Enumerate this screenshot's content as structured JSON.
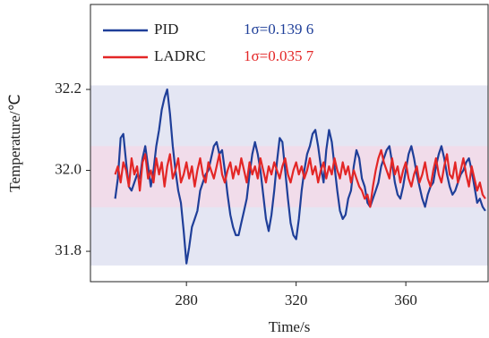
{
  "chart_data": {
    "type": "line",
    "x_label": "Time/s",
    "y_label": "Temperature/℃",
    "xlim": [
      245,
      390
    ],
    "ylim": [
      31.725,
      32.41
    ],
    "xticks": [
      280,
      320,
      360
    ],
    "yticks": [
      31.8,
      {
        "value": 32,
        "label": "32.0"
      },
      32.2
    ],
    "bands": [
      {
        "ylim": [
          31.765,
          32.21
        ],
        "color": "#e4e6f3"
      },
      {
        "ylim": [
          31.909,
          32.06
        ],
        "color": "#f1dcea"
      }
    ],
    "legend": "upper left",
    "x": [
      254,
      255,
      256,
      257,
      258,
      259,
      260,
      261,
      262,
      263,
      264,
      265,
      266,
      267,
      268,
      269,
      270,
      271,
      272,
      273,
      274,
      275,
      276,
      277,
      278,
      279,
      280,
      281,
      282,
      283,
      284,
      285,
      286,
      287,
      288,
      289,
      290,
      291,
      292,
      293,
      294,
      295,
      296,
      297,
      298,
      299,
      300,
      301,
      302,
      303,
      304,
      305,
      306,
      307,
      308,
      309,
      310,
      311,
      312,
      313,
      314,
      315,
      316,
      317,
      318,
      319,
      320,
      321,
      322,
      323,
      324,
      325,
      326,
      327,
      328,
      329,
      330,
      331,
      332,
      333,
      334,
      335,
      336,
      337,
      338,
      339,
      340,
      341,
      342,
      343,
      344,
      345,
      346,
      347,
      348,
      349,
      350,
      351,
      352,
      353,
      354,
      355,
      356,
      357,
      358,
      359,
      360,
      361,
      362,
      363,
      364,
      365,
      366,
      367,
      368,
      369,
      370,
      371,
      372,
      373,
      374,
      375,
      376,
      377,
      378,
      379,
      380,
      381,
      382,
      383,
      384,
      385,
      386,
      387,
      388,
      389
    ],
    "series": [
      {
        "name": "PID",
        "note_label": "1σ=0.139 6",
        "color": "#1f3f99",
        "values": [
          31.93,
          31.98,
          32.08,
          32.09,
          32.02,
          31.96,
          31.95,
          31.97,
          31.99,
          31.98,
          32.03,
          32.06,
          32.01,
          31.96,
          32.0,
          32.06,
          32.1,
          32.15,
          32.18,
          32.2,
          32.14,
          32.06,
          32.0,
          31.95,
          31.92,
          31.85,
          31.77,
          31.81,
          31.86,
          31.88,
          31.9,
          31.95,
          31.97,
          31.99,
          32.0,
          32.03,
          32.06,
          32.07,
          32.04,
          32.05,
          32.0,
          31.94,
          31.89,
          31.86,
          31.84,
          31.84,
          31.87,
          31.9,
          31.93,
          31.99,
          32.04,
          32.07,
          32.04,
          32.0,
          31.94,
          31.88,
          31.85,
          31.89,
          31.95,
          32.02,
          32.08,
          32.07,
          32.0,
          31.93,
          31.87,
          31.84,
          31.83,
          31.88,
          31.95,
          32.0,
          32.04,
          32.06,
          32.09,
          32.1,
          32.06,
          32.01,
          31.97,
          32.05,
          32.1,
          32.07,
          32.01,
          31.95,
          31.9,
          31.88,
          31.89,
          31.93,
          31.95,
          32.01,
          32.05,
          32.03,
          31.98,
          31.96,
          31.92,
          31.91,
          31.93,
          31.95,
          31.97,
          32.01,
          32.03,
          32.05,
          32.06,
          32.02,
          31.97,
          31.94,
          31.93,
          31.96,
          32.0,
          32.04,
          32.06,
          32.03,
          31.99,
          31.96,
          31.93,
          31.91,
          31.94,
          31.96,
          31.97,
          32.01,
          32.04,
          32.06,
          32.03,
          31.99,
          31.96,
          31.94,
          31.95,
          31.97,
          31.99,
          32.0,
          32.02,
          32.03,
          32.0,
          31.96,
          31.92,
          31.93,
          31.91,
          31.9
        ]
      },
      {
        "name": "LADRC",
        "note_label": "1σ=0.035 7",
        "color": "#e32626",
        "values": [
          31.99,
          32.01,
          31.97,
          32.02,
          32.0,
          31.96,
          32.03,
          31.99,
          32.01,
          31.95,
          32.02,
          32.04,
          31.98,
          32.0,
          31.97,
          32.03,
          31.99,
          32.02,
          31.96,
          32.01,
          32.04,
          31.98,
          32.0,
          32.03,
          31.97,
          31.99,
          32.02,
          31.98,
          32.01,
          31.96,
          32.0,
          32.03,
          31.99,
          31.97,
          32.02,
          32.0,
          31.98,
          32.01,
          32.04,
          31.99,
          31.97,
          32.0,
          32.02,
          31.98,
          32.01,
          31.99,
          32.03,
          32.0,
          31.97,
          32.02,
          31.99,
          32.01,
          31.98,
          32.03,
          32.0,
          31.97,
          32.01,
          31.99,
          32.02,
          32.0,
          31.98,
          32.01,
          32.03,
          31.99,
          31.97,
          32.0,
          32.02,
          31.99,
          32.01,
          31.98,
          32.0,
          32.03,
          31.99,
          32.01,
          31.97,
          32.0,
          32.02,
          31.98,
          32.01,
          31.99,
          32.03,
          32.0,
          31.98,
          32.02,
          31.99,
          32.01,
          31.97,
          32.0,
          31.98,
          31.96,
          31.95,
          31.93,
          31.94,
          31.91,
          31.96,
          32.0,
          32.03,
          32.05,
          32.02,
          32.0,
          31.98,
          32.03,
          31.99,
          32.01,
          31.97,
          32.0,
          32.02,
          31.98,
          31.96,
          31.99,
          32.01,
          31.97,
          31.99,
          32.02,
          31.98,
          31.96,
          32.0,
          32.03,
          31.99,
          31.97,
          32.01,
          32.04,
          31.99,
          31.98,
          32.02,
          31.97,
          32.0,
          32.03,
          31.99,
          31.96,
          32.01,
          31.98,
          31.95,
          31.97,
          31.94,
          31.93
        ]
      }
    ]
  }
}
